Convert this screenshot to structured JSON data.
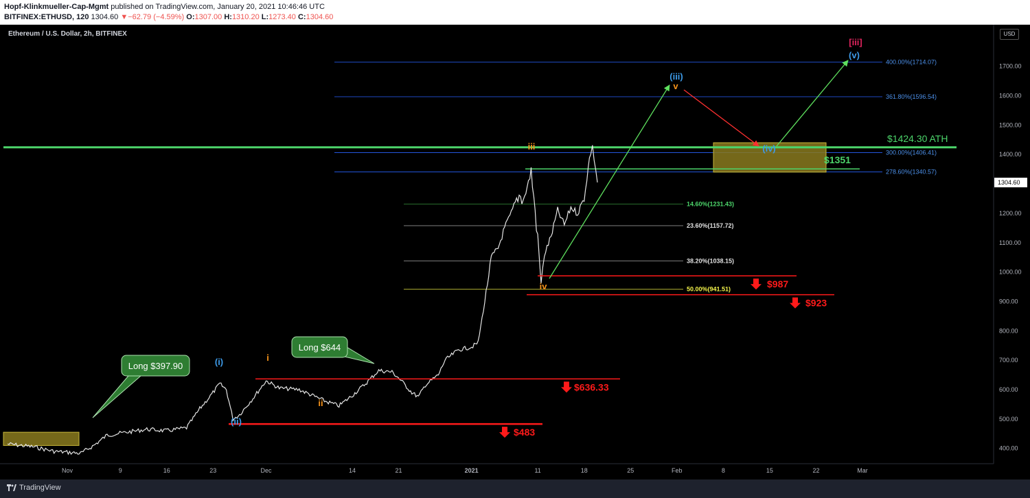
{
  "header": {
    "author": "Hopf-Klinkmueller-Cap-Mgmt",
    "published": " published on TradingView.com, January 20, 2021 10:46:46 UTC",
    "symbol": "BITFINEX:ETHUSD, 120",
    "price": "1304.60",
    "change": "−62.79 (−4.59%)",
    "o_label": "O:",
    "o_val": "1307.00",
    "h_label": "H:",
    "h_val": "1310.20",
    "l_label": "L:",
    "l_val": "1273.40",
    "c_label": "C:",
    "c_val": "1304.60"
  },
  "chart_title": "Ethereum / U.S. Dollar, 2h, BITFINEX",
  "currency_button": "USD",
  "brand": "TradingView",
  "colors": {
    "background": "#000000",
    "ath_line": "#4cd46a",
    "support_red": "#ff1a1a",
    "fib_blue": "#3a6ea5",
    "wave_blue": "#3d9be9",
    "wave_orange": "#f7931a",
    "zone_fill": "#8a7a1e",
    "callout_green": "#2e7d32"
  },
  "chart_data": {
    "type": "line",
    "x_ticks": [
      "Nov",
      "9",
      "16",
      "23",
      "Dec",
      "14",
      "21",
      "2021",
      "11",
      "18",
      "25",
      "Feb",
      "8",
      "15",
      "22",
      "Mar"
    ],
    "y_ticks": [
      "1700.00",
      "1600.00",
      "1500.00",
      "1400.00",
      "1300.00",
      "1200.00",
      "1100.00",
      "1000.00",
      "900.00",
      "800.00",
      "700.00",
      "600.00",
      "500.00",
      "400.00"
    ],
    "ylim": [
      330,
      1810
    ],
    "last_price": "1304.60",
    "price_path": [
      {
        "date": "2020-10-23",
        "price": 415
      },
      {
        "date": "2020-10-27",
        "price": 405
      },
      {
        "date": "2020-10-30",
        "price": 390
      },
      {
        "date": "2020-11-02",
        "price": 385
      },
      {
        "date": "2020-11-03",
        "price": 383
      },
      {
        "date": "2020-11-05",
        "price": 410
      },
      {
        "date": "2020-11-07",
        "price": 445
      },
      {
        "date": "2020-11-10",
        "price": 455
      },
      {
        "date": "2020-11-13",
        "price": 465
      },
      {
        "date": "2020-11-16",
        "price": 460
      },
      {
        "date": "2020-11-19",
        "price": 470
      },
      {
        "date": "2020-11-21",
        "price": 535
      },
      {
        "date": "2020-11-23",
        "price": 590
      },
      {
        "date": "2020-11-24",
        "price": 620
      },
      {
        "date": "2020-11-25",
        "price": 600
      },
      {
        "date": "2020-11-26",
        "price": 500
      },
      {
        "date": "2020-11-27",
        "price": 515
      },
      {
        "date": "2020-11-29",
        "price": 570
      },
      {
        "date": "2020-12-01",
        "price": 630
      },
      {
        "date": "2020-12-03",
        "price": 605
      },
      {
        "date": "2020-12-06",
        "price": 600
      },
      {
        "date": "2020-12-08",
        "price": 580
      },
      {
        "date": "2020-12-10",
        "price": 560
      },
      {
        "date": "2020-12-12",
        "price": 545
      },
      {
        "date": "2020-12-14",
        "price": 580
      },
      {
        "date": "2020-12-16",
        "price": 620
      },
      {
        "date": "2020-12-18",
        "price": 665
      },
      {
        "date": "2020-12-20",
        "price": 660
      },
      {
        "date": "2020-12-21",
        "price": 640
      },
      {
        "date": "2020-12-23",
        "price": 590
      },
      {
        "date": "2020-12-24",
        "price": 575
      },
      {
        "date": "2020-12-25",
        "price": 615
      },
      {
        "date": "2020-12-27",
        "price": 650
      },
      {
        "date": "2020-12-28",
        "price": 700
      },
      {
        "date": "2020-12-30",
        "price": 735
      },
      {
        "date": "2021-01-01",
        "price": 745
      },
      {
        "date": "2021-01-02",
        "price": 760
      },
      {
        "date": "2021-01-03",
        "price": 900
      },
      {
        "date": "2021-01-04",
        "price": 1050
      },
      {
        "date": "2021-01-05",
        "price": 1080
      },
      {
        "date": "2021-01-06",
        "price": 1150
      },
      {
        "date": "2021-01-07",
        "price": 1200
      },
      {
        "date": "2021-01-08",
        "price": 1260
      },
      {
        "date": "2021-01-09",
        "price": 1255
      },
      {
        "date": "2021-01-10",
        "price": 1340
      },
      {
        "date": "2021-01-11",
        "price": 1120
      },
      {
        "date": "2021-01-11T12",
        "price": 960
      },
      {
        "date": "2021-01-12",
        "price": 1060
      },
      {
        "date": "2021-01-13",
        "price": 1120
      },
      {
        "date": "2021-01-14",
        "price": 1210
      },
      {
        "date": "2021-01-15",
        "price": 1160
      },
      {
        "date": "2021-01-16",
        "price": 1220
      },
      {
        "date": "2021-01-17",
        "price": 1200
      },
      {
        "date": "2021-01-18",
        "price": 1250
      },
      {
        "date": "2021-01-19",
        "price": 1420
      },
      {
        "date": "2021-01-19T12",
        "price": 1400
      },
      {
        "date": "2021-01-20",
        "price": 1305
      }
    ],
    "fib_levels": [
      {
        "label": "400.00%(1714.07)",
        "value": 1714.07
      },
      {
        "label": "361.80%(1596.54)",
        "value": 1596.54
      },
      {
        "label": "300.00%(1406.41)",
        "value": 1406.41
      },
      {
        "label": "278.60%(1340.57)",
        "value": 1340.57
      },
      {
        "label": "14.60%(1231.43)",
        "value": 1231.43
      },
      {
        "label": "23.60%(1157.72)",
        "value": 1157.72
      },
      {
        "label": "38.20%(1038.15)",
        "value": 1038.15
      },
      {
        "label": "50.00%(941.51)",
        "value": 941.51
      }
    ],
    "ath": {
      "label": "$1424.30 ATH",
      "value": 1424.3
    },
    "zone_label": "$1351",
    "support_levels": [
      {
        "label": "$987",
        "value": 987
      },
      {
        "label": "$923",
        "value": 923
      },
      {
        "label": "$636.33",
        "value": 636.33
      },
      {
        "label": "$483",
        "value": 483
      }
    ],
    "callouts": [
      "Long $397.90",
      "Long $644"
    ],
    "wave_labels": [
      "(i)",
      "(ii)",
      "i",
      "ii",
      "iii",
      "iv",
      "(iii)",
      "v",
      "(iv)",
      "(v)",
      "[iii]"
    ]
  }
}
